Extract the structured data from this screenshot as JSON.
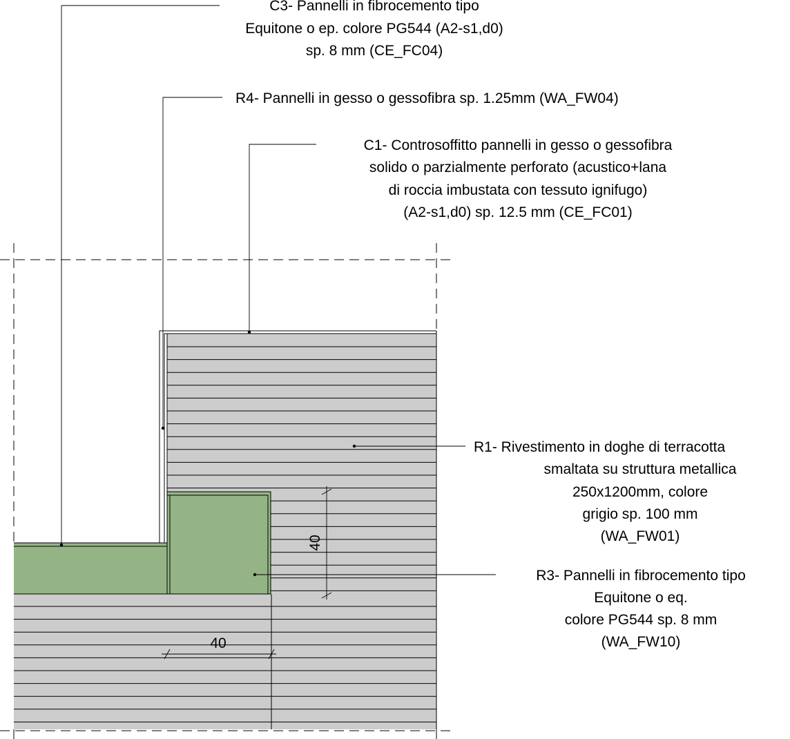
{
  "labels": {
    "c3": [
      "C3- Pannelli in fibrocemento tipo",
      "Equitone o ep. colore PG544 (A2-s1,d0)",
      "sp. 8 mm (CE_FC04)"
    ],
    "r4": [
      "R4- Pannelli in gesso o gessofibra sp. 1.25mm (WA_FW04)"
    ],
    "c1": [
      "C1- Controsoffitto pannelli in gesso o gessofibra",
      "solido o parzialmente perforato (acustico+lana",
      "di roccia imbustata con tessuto ignifugo)",
      "(A2-s1,d0) sp. 12.5 mm (CE_FC01)"
    ],
    "r1": [
      "R1- Rivestimento in doghe di terracotta",
      "smaltata su struttura metallica",
      "250x1200mm, colore",
      "grigio sp. 100 mm",
      "(WA_FW01)"
    ],
    "r3": [
      "R3- Pannelli in fibrocemento tipo",
      "Equitone o eq.",
      "colore PG544 sp. 8 mm",
      "(WA_FW10)"
    ]
  },
  "dimensions": {
    "vertical": "40",
    "horizontal": "40"
  },
  "colors": {
    "terracotta_cladding": "#cccccc",
    "fibre_cement_panel": "#94b486",
    "line": "#000000"
  }
}
